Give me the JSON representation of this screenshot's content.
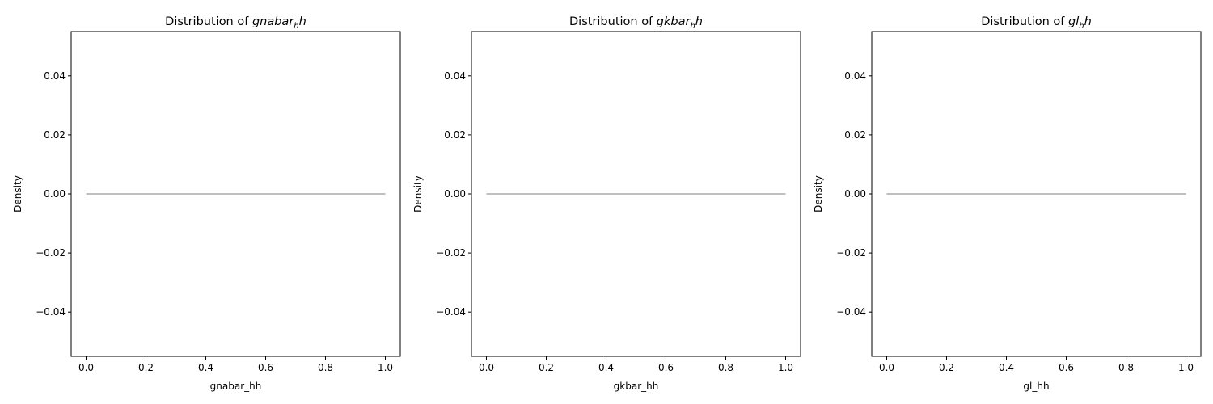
{
  "chart_data": [
    {
      "type": "line",
      "title": {
        "prefix": "Distribution of ",
        "base": "gnabar",
        "sub": "h",
        "suffix": "h"
      },
      "xlabel": "gnabar_hh",
      "ylabel": "Density",
      "xlim": [
        -0.05,
        1.05
      ],
      "ylim": [
        -0.055,
        0.055
      ],
      "xticks": [
        0.0,
        0.2,
        0.4,
        0.6,
        0.8,
        1.0
      ],
      "xtick_labels": [
        "0.0",
        "0.2",
        "0.4",
        "0.6",
        "0.8",
        "1.0"
      ],
      "yticks": [
        0.04,
        0.02,
        0.0,
        -0.02,
        -0.04
      ],
      "ytick_labels": [
        "0.04",
        "0.02",
        "0.00",
        "−0.02",
        "−0.04"
      ],
      "grid": false,
      "series": [
        {
          "color": "#555555",
          "x": [
            0.0,
            1.0
          ],
          "y": [
            0.0,
            0.0
          ]
        }
      ]
    },
    {
      "type": "line",
      "title": {
        "prefix": "Distribution of ",
        "base": "gkbar",
        "sub": "h",
        "suffix": "h"
      },
      "xlabel": "gkbar_hh",
      "ylabel": "Density",
      "xlim": [
        -0.05,
        1.05
      ],
      "ylim": [
        -0.055,
        0.055
      ],
      "xticks": [
        0.0,
        0.2,
        0.4,
        0.6,
        0.8,
        1.0
      ],
      "xtick_labels": [
        "0.0",
        "0.2",
        "0.4",
        "0.6",
        "0.8",
        "1.0"
      ],
      "yticks": [
        0.04,
        0.02,
        0.0,
        -0.02,
        -0.04
      ],
      "ytick_labels": [
        "0.04",
        "0.02",
        "0.00",
        "−0.02",
        "−0.04"
      ],
      "grid": false,
      "series": [
        {
          "color": "#555555",
          "x": [
            0.0,
            1.0
          ],
          "y": [
            0.0,
            0.0
          ]
        }
      ]
    },
    {
      "type": "line",
      "title": {
        "prefix": "Distribution of ",
        "base": "gl",
        "sub": "h",
        "suffix": "h"
      },
      "xlabel": "gl_hh",
      "ylabel": "Density",
      "xlim": [
        -0.05,
        1.05
      ],
      "ylim": [
        -0.055,
        0.055
      ],
      "xticks": [
        0.0,
        0.2,
        0.4,
        0.6,
        0.8,
        1.0
      ],
      "xtick_labels": [
        "0.0",
        "0.2",
        "0.4",
        "0.6",
        "0.8",
        "1.0"
      ],
      "yticks": [
        0.04,
        0.02,
        0.0,
        -0.02,
        -0.04
      ],
      "ytick_labels": [
        "0.04",
        "0.02",
        "0.00",
        "−0.02",
        "−0.04"
      ],
      "grid": false,
      "series": [
        {
          "color": "#555555",
          "x": [
            0.0,
            1.0
          ],
          "y": [
            0.0,
            0.0
          ]
        }
      ]
    }
  ]
}
